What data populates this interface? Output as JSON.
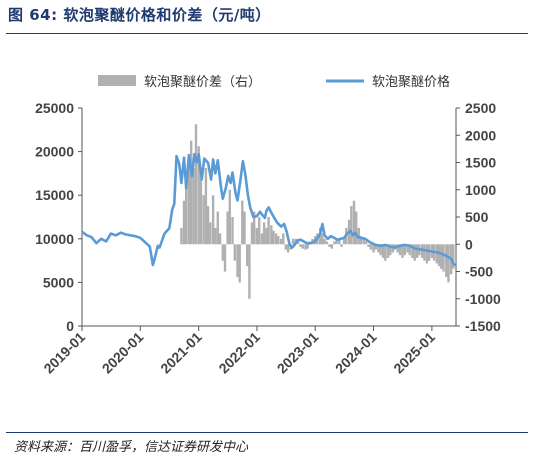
{
  "header": {
    "title": "图 64:  软泡聚醚价格和价差（元/吨）"
  },
  "footer": {
    "source": "资料来源：百川盈孚，信达证券研发中心"
  },
  "chart_data": {
    "type": "line",
    "legend": [
      {
        "label": "软泡聚醚价差（右）",
        "kind": "bar",
        "color": "#b0b0b0"
      },
      {
        "label": "软泡聚醚价格",
        "kind": "line",
        "color": "#5b9bd5"
      }
    ],
    "legend_placement": "top",
    "x_ticks": [
      "2019-01",
      "2020-01",
      "2021-01",
      "2022-01",
      "2023-01",
      "2024-01",
      "2025-01"
    ],
    "y_left": {
      "range": [
        0,
        25000
      ],
      "ticks": [
        "0",
        "5000",
        "10000",
        "15000",
        "20000",
        "25000"
      ]
    },
    "y_right": {
      "range": [
        -1500,
        2500
      ],
      "ticks": [
        "-1500",
        "-1000",
        "-500",
        "0",
        "500",
        "1000",
        "1500",
        "2000",
        "2500"
      ]
    },
    "grid": false,
    "series": [
      {
        "name": "软泡聚醚价格",
        "axis": "left",
        "color": "#5b9bd5",
        "points": [
          [
            "2019-01-01",
            10800
          ],
          [
            "2019-02-01",
            10400
          ],
          [
            "2019-03-01",
            10200
          ],
          [
            "2019-04-01",
            9500
          ],
          [
            "2019-05-01",
            10000
          ],
          [
            "2019-06-01",
            9700
          ],
          [
            "2019-07-01",
            10600
          ],
          [
            "2019-08-01",
            10400
          ],
          [
            "2019-09-01",
            10700
          ],
          [
            "2019-10-01",
            10500
          ],
          [
            "2019-11-01",
            10400
          ],
          [
            "2019-12-01",
            10300
          ],
          [
            "2020-01-01",
            10100
          ],
          [
            "2020-02-01",
            9600
          ],
          [
            "2020-03-01",
            9100
          ],
          [
            "2020-03-20",
            7000
          ],
          [
            "2020-04-01",
            7800
          ],
          [
            "2020-04-20",
            9200
          ],
          [
            "2020-05-01",
            9000
          ],
          [
            "2020-06-01",
            10600
          ],
          [
            "2020-07-01",
            11200
          ],
          [
            "2020-07-20",
            13400
          ],
          [
            "2020-08-01",
            14000
          ],
          [
            "2020-08-15",
            19500
          ],
          [
            "2020-09-01",
            18600
          ],
          [
            "2020-09-15",
            16400
          ],
          [
            "2020-10-01",
            19300
          ],
          [
            "2020-10-15",
            15800
          ],
          [
            "2020-11-01",
            19600
          ],
          [
            "2020-11-20",
            17200
          ],
          [
            "2020-12-05",
            19700
          ],
          [
            "2020-12-20",
            18800
          ],
          [
            "2021-01-01",
            19700
          ],
          [
            "2021-01-20",
            16800
          ],
          [
            "2021-02-05",
            19200
          ],
          [
            "2021-03-01",
            18700
          ],
          [
            "2021-03-20",
            16800
          ],
          [
            "2021-04-01",
            19100
          ],
          [
            "2021-04-15",
            17500
          ],
          [
            "2021-05-01",
            19000
          ],
          [
            "2021-05-20",
            16000
          ],
          [
            "2021-06-01",
            14600
          ],
          [
            "2021-06-20",
            15800
          ],
          [
            "2021-07-05",
            17200
          ],
          [
            "2021-07-20",
            16400
          ],
          [
            "2021-08-01",
            17600
          ],
          [
            "2021-08-20",
            15200
          ],
          [
            "2021-09-01",
            14400
          ],
          [
            "2021-09-20",
            16800
          ],
          [
            "2021-10-05",
            18900
          ],
          [
            "2021-10-20",
            17400
          ],
          [
            "2021-11-05",
            15100
          ],
          [
            "2021-11-20",
            13600
          ],
          [
            "2021-12-10",
            12500
          ],
          [
            "2022-01-01",
            12600
          ],
          [
            "2022-01-20",
            13100
          ],
          [
            "2022-02-01",
            12800
          ],
          [
            "2022-02-20",
            12400
          ],
          [
            "2022-03-01",
            13200
          ],
          [
            "2022-03-15",
            13600
          ],
          [
            "2022-04-01",
            13000
          ],
          [
            "2022-04-20",
            12400
          ],
          [
            "2022-05-10",
            11800
          ],
          [
            "2022-06-01",
            11400
          ],
          [
            "2022-06-20",
            11700
          ],
          [
            "2022-07-05",
            10900
          ],
          [
            "2022-07-25",
            9300
          ],
          [
            "2022-08-10",
            9000
          ],
          [
            "2022-08-25",
            9300
          ],
          [
            "2022-09-10",
            9800
          ],
          [
            "2022-10-01",
            9900
          ],
          [
            "2022-10-20",
            9700
          ],
          [
            "2022-11-10",
            9500
          ],
          [
            "2022-12-01",
            9500
          ],
          [
            "2022-12-20",
            9600
          ],
          [
            "2023-01-10",
            9900
          ],
          [
            "2023-02-01",
            10600
          ],
          [
            "2023-02-15",
            11700
          ],
          [
            "2023-03-01",
            10400
          ],
          [
            "2023-03-20",
            10000
          ],
          [
            "2023-04-10",
            10300
          ],
          [
            "2023-05-01",
            10100
          ],
          [
            "2023-05-20",
            9900
          ],
          [
            "2023-06-10",
            10000
          ],
          [
            "2023-07-01",
            10100
          ],
          [
            "2023-07-20",
            10600
          ],
          [
            "2023-08-10",
            10900
          ],
          [
            "2023-08-25",
            10400
          ],
          [
            "2023-09-10",
            10700
          ],
          [
            "2023-09-25",
            10200
          ],
          [
            "2023-10-15",
            10100
          ],
          [
            "2023-11-10",
            10000
          ],
          [
            "2023-12-10",
            9600
          ],
          [
            "2024-01-15",
            9300
          ],
          [
            "2024-02-15",
            9200
          ],
          [
            "2024-03-15",
            9300
          ],
          [
            "2024-04-15",
            9100
          ],
          [
            "2024-05-15",
            9000
          ],
          [
            "2024-06-15",
            9200
          ],
          [
            "2024-07-15",
            9300
          ],
          [
            "2024-08-15",
            9200
          ],
          [
            "2024-09-15",
            8900
          ],
          [
            "2024-10-15",
            8800
          ],
          [
            "2024-11-15",
            8700
          ],
          [
            "2024-12-15",
            8600
          ],
          [
            "2025-01-15",
            8500
          ],
          [
            "2025-02-15",
            8400
          ],
          [
            "2025-03-15",
            8200
          ],
          [
            "2025-04-15",
            7900
          ],
          [
            "2025-05-01",
            7700
          ],
          [
            "2025-05-15",
            7200
          ],
          [
            "2025-05-25",
            6900
          ]
        ]
      },
      {
        "name": "软泡聚醚价差（右）",
        "axis": "right",
        "color": "#b0b0b0",
        "points": [
          [
            "2020-09-15",
            300
          ],
          [
            "2020-10-01",
            800
          ],
          [
            "2020-10-15",
            1200
          ],
          [
            "2020-11-01",
            1600
          ],
          [
            "2020-11-15",
            1900
          ],
          [
            "2020-12-01",
            1400
          ],
          [
            "2020-12-15",
            2200
          ],
          [
            "2021-01-01",
            1800
          ],
          [
            "2021-01-15",
            1200
          ],
          [
            "2021-02-01",
            900
          ],
          [
            "2021-02-15",
            1400
          ],
          [
            "2021-03-01",
            700
          ],
          [
            "2021-03-15",
            400
          ],
          [
            "2021-04-01",
            900
          ],
          [
            "2021-04-15",
            300
          ],
          [
            "2021-05-01",
            600
          ],
          [
            "2021-05-15",
            200
          ],
          [
            "2021-06-01",
            -300
          ],
          [
            "2021-06-15",
            -500
          ],
          [
            "2021-07-01",
            600
          ],
          [
            "2021-07-15",
            1000
          ],
          [
            "2021-08-01",
            500
          ],
          [
            "2021-08-15",
            -300
          ],
          [
            "2021-09-01",
            -600
          ],
          [
            "2021-09-15",
            -700
          ],
          [
            "2021-10-01",
            800
          ],
          [
            "2021-10-15",
            600
          ],
          [
            "2021-11-01",
            -400
          ],
          [
            "2021-11-15",
            -1000
          ],
          [
            "2021-12-01",
            400
          ],
          [
            "2021-12-15",
            600
          ],
          [
            "2022-01-01",
            300
          ],
          [
            "2022-01-15",
            500
          ],
          [
            "2022-02-01",
            200
          ],
          [
            "2022-02-15",
            400
          ],
          [
            "2022-03-01",
            300
          ],
          [
            "2022-03-15",
            500
          ],
          [
            "2022-04-01",
            350
          ],
          [
            "2022-04-15",
            250
          ],
          [
            "2022-05-01",
            200
          ],
          [
            "2022-05-15",
            150
          ],
          [
            "2022-06-01",
            100
          ],
          [
            "2022-06-15",
            200
          ],
          [
            "2022-07-01",
            -100
          ],
          [
            "2022-07-15",
            -150
          ],
          [
            "2022-08-01",
            -100
          ],
          [
            "2022-08-15",
            100
          ],
          [
            "2022-09-01",
            100
          ],
          [
            "2022-09-15",
            50
          ],
          [
            "2022-10-01",
            -50
          ],
          [
            "2022-10-15",
            -80
          ],
          [
            "2022-11-01",
            -100
          ],
          [
            "2022-11-15",
            -80
          ],
          [
            "2022-12-01",
            50
          ],
          [
            "2022-12-15",
            100
          ],
          [
            "2023-01-01",
            150
          ],
          [
            "2023-01-15",
            200
          ],
          [
            "2023-02-01",
            300
          ],
          [
            "2023-02-15",
            200
          ],
          [
            "2023-03-01",
            100
          ],
          [
            "2023-03-15",
            50
          ],
          [
            "2023-04-01",
            -50
          ],
          [
            "2023-04-15",
            -80
          ],
          [
            "2023-05-01",
            50
          ],
          [
            "2023-05-15",
            100
          ],
          [
            "2023-06-01",
            80
          ],
          [
            "2023-06-15",
            -50
          ],
          [
            "2023-07-01",
            100
          ],
          [
            "2023-07-15",
            300
          ],
          [
            "2023-08-01",
            450
          ],
          [
            "2023-08-15",
            700
          ],
          [
            "2023-09-01",
            800
          ],
          [
            "2023-09-15",
            600
          ],
          [
            "2023-10-01",
            300
          ],
          [
            "2023-10-15",
            150
          ],
          [
            "2023-11-01",
            100
          ],
          [
            "2023-11-15",
            50
          ],
          [
            "2023-12-01",
            -50
          ],
          [
            "2023-12-15",
            -100
          ],
          [
            "2024-01-01",
            -150
          ],
          [
            "2024-01-15",
            -100
          ],
          [
            "2024-02-01",
            -150
          ],
          [
            "2024-02-15",
            -200
          ],
          [
            "2024-03-01",
            -250
          ],
          [
            "2024-03-15",
            -300
          ],
          [
            "2024-04-01",
            -250
          ],
          [
            "2024-04-15",
            -200
          ],
          [
            "2024-05-01",
            -150
          ],
          [
            "2024-05-15",
            -100
          ],
          [
            "2024-06-01",
            -150
          ],
          [
            "2024-06-15",
            -200
          ],
          [
            "2024-07-01",
            -250
          ],
          [
            "2024-07-15",
            -200
          ],
          [
            "2024-08-01",
            -150
          ],
          [
            "2024-08-15",
            -200
          ],
          [
            "2024-09-01",
            -250
          ],
          [
            "2024-09-15",
            -300
          ],
          [
            "2024-10-01",
            -250
          ],
          [
            "2024-10-15",
            -200
          ],
          [
            "2024-11-01",
            -250
          ],
          [
            "2024-11-15",
            -300
          ],
          [
            "2024-12-01",
            -350
          ],
          [
            "2024-12-15",
            -300
          ],
          [
            "2025-01-01",
            -250
          ],
          [
            "2025-01-15",
            -300
          ],
          [
            "2025-02-01",
            -350
          ],
          [
            "2025-02-15",
            -400
          ],
          [
            "2025-03-01",
            -450
          ],
          [
            "2025-03-15",
            -500
          ],
          [
            "2025-04-01",
            -600
          ],
          [
            "2025-04-15",
            -700
          ],
          [
            "2025-05-01",
            -550
          ],
          [
            "2025-05-15",
            -450
          ]
        ]
      }
    ]
  }
}
